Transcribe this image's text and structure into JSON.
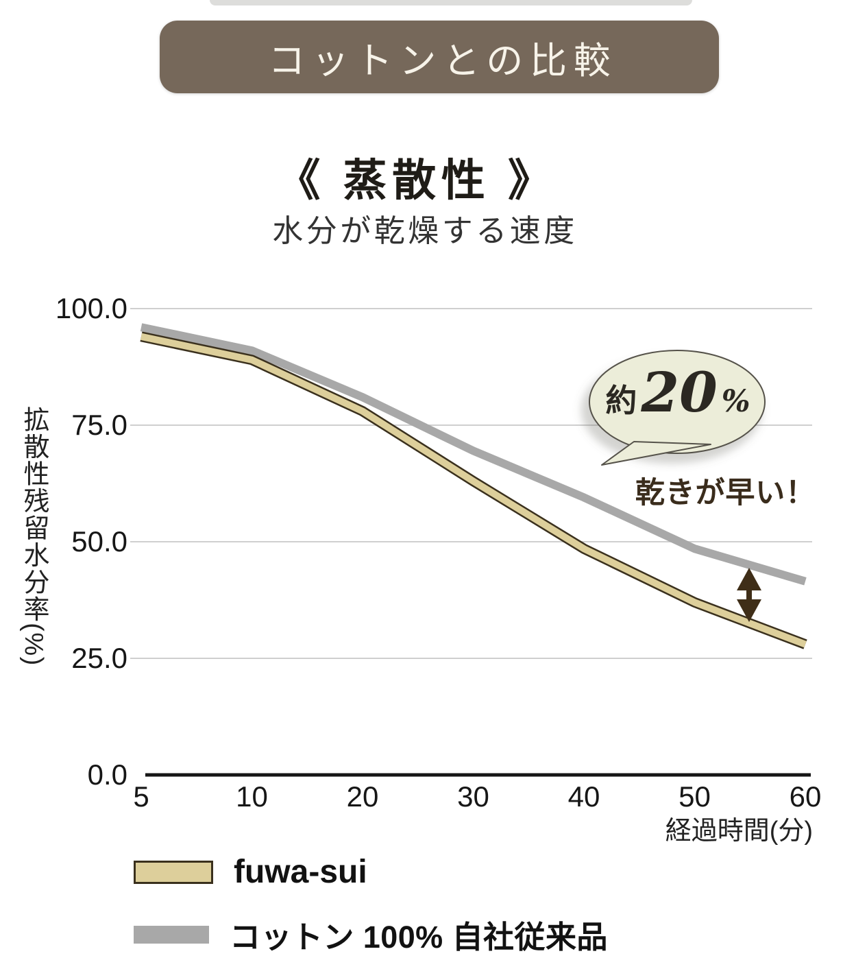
{
  "page": {
    "badge": "コットンとの比較",
    "title": "《 蒸散性 》",
    "subtitle": "水分が乾燥する速度"
  },
  "chart_data": {
    "type": "line",
    "x_categories": [
      "5",
      "10",
      "20",
      "30",
      "40",
      "50",
      "60"
    ],
    "series": [
      {
        "name": "fuwa-sui",
        "values": [
          94,
          89,
          78,
          63,
          48.5,
          37,
          28
        ],
        "color": "#ddcf9b",
        "outline_color": "#3a301d"
      },
      {
        "name": "コットン 100% 自社従来品",
        "values": [
          96,
          91,
          81,
          69.5,
          59.5,
          48.5,
          41.5
        ],
        "color": "#a8a8a8",
        "outline_color": null
      }
    ],
    "ylabel": "拡散性残留水分率(%)",
    "xlabel": "経過時間(分)",
    "ytick_labels": [
      "100.0",
      "75.0",
      "50.0",
      "25.0",
      "0.0"
    ],
    "ytick_values": [
      100,
      75,
      50,
      25,
      0
    ],
    "ylim": [
      0,
      100
    ],
    "grid": true,
    "legend_position": "below-left"
  },
  "annotation": {
    "bubble_prefix": "約",
    "bubble_value": "20",
    "bubble_percent": "%",
    "callout": "乾きが早い！",
    "bubble_fill": "#ecedd9",
    "bubble_stroke": "#55524a",
    "arrow_color": "#3f2e18",
    "arrow_between_x": "55"
  },
  "colors": {
    "badge_bg": "#76685a",
    "badge_text": "#f7f3e9",
    "grid": "#cfcfcf",
    "axis": "#161616",
    "callout_text": "#3a2c1c"
  }
}
